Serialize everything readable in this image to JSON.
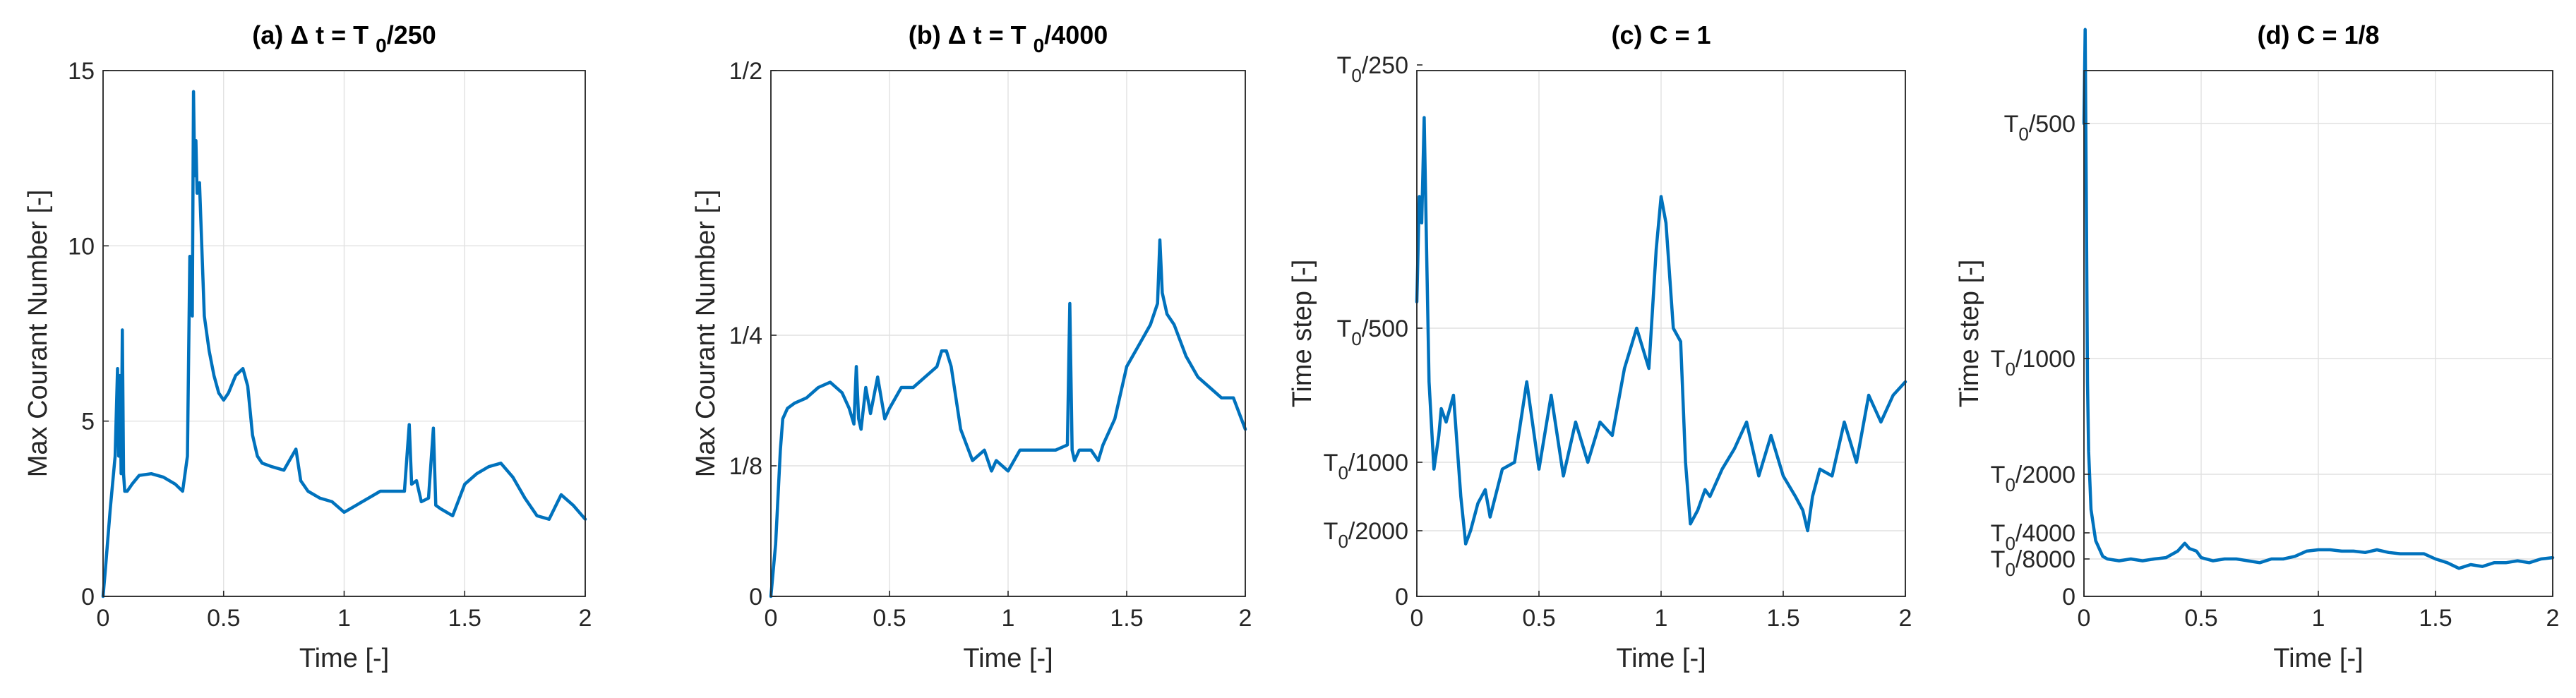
{
  "colors": {
    "series": "#0072bd",
    "axis": "#262626",
    "grid": "#e1e1e1"
  },
  "chart_data": [
    {
      "type": "line",
      "title": "(a)   Δ t = T   0/250",
      "title_parts": [
        "(a)",
        "Δ",
        "t = T",
        "0",
        "/250"
      ],
      "xlabel": "Time [-]",
      "ylabel": "Max Courant Number [-]",
      "xlim": [
        0,
        2
      ],
      "ylim": [
        0,
        15
      ],
      "grid": true,
      "x_ticks": [
        {
          "v": 0,
          "label": "0"
        },
        {
          "v": 0.5,
          "label": "0.5"
        },
        {
          "v": 1,
          "label": "1"
        },
        {
          "v": 1.5,
          "label": "1.5"
        },
        {
          "v": 2,
          "label": "2"
        }
      ],
      "y_ticks": [
        {
          "v": 0,
          "label": "0"
        },
        {
          "v": 5,
          "label": "5"
        },
        {
          "v": 10,
          "label": "10"
        },
        {
          "v": 15,
          "label": "15"
        }
      ],
      "x": [
        0,
        0.01,
        0.03,
        0.05,
        0.06,
        0.065,
        0.07,
        0.075,
        0.08,
        0.085,
        0.09,
        0.1,
        0.12,
        0.15,
        0.2,
        0.25,
        0.3,
        0.33,
        0.35,
        0.36,
        0.37,
        0.375,
        0.38,
        0.385,
        0.39,
        0.4,
        0.42,
        0.44,
        0.46,
        0.48,
        0.5,
        0.52,
        0.55,
        0.58,
        0.6,
        0.62,
        0.64,
        0.66,
        0.7,
        0.75,
        0.8,
        0.82,
        0.85,
        0.9,
        0.95,
        1.0,
        1.05,
        1.1,
        1.15,
        1.2,
        1.25,
        1.27,
        1.28,
        1.3,
        1.32,
        1.35,
        1.37,
        1.38,
        1.4,
        1.45,
        1.5,
        1.55,
        1.6,
        1.65,
        1.7,
        1.75,
        1.8,
        1.85,
        1.9,
        1.95,
        2.0
      ],
      "values": [
        0,
        0.8,
        2.5,
        4.0,
        6.5,
        4.0,
        6.3,
        3.5,
        7.6,
        3.5,
        3.0,
        3.0,
        3.2,
        3.45,
        3.5,
        3.4,
        3.2,
        3.0,
        4.0,
        9.7,
        8.0,
        14.4,
        12.0,
        13.0,
        11.5,
        11.8,
        8.0,
        7.0,
        6.3,
        5.8,
        5.6,
        5.8,
        6.3,
        6.5,
        6.0,
        4.6,
        4.0,
        3.8,
        3.7,
        3.6,
        4.2,
        3.3,
        3.0,
        2.8,
        2.7,
        2.4,
        2.6,
        2.8,
        3.0,
        3.0,
        3.0,
        4.9,
        3.2,
        3.3,
        2.7,
        2.8,
        4.8,
        2.6,
        2.5,
        2.3,
        3.2,
        3.5,
        3.7,
        3.8,
        3.4,
        2.8,
        2.3,
        2.2,
        2.9,
        2.6,
        2.2
      ]
    },
    {
      "type": "line",
      "title": "(b)   Δ t = T   0/4000",
      "title_parts": [
        "(b)",
        "Δ",
        "t = T",
        "0",
        "/4000"
      ],
      "xlabel": "Time [-]",
      "ylabel": "Max Courant Number [-]",
      "xlim": [
        0,
        2
      ],
      "ylim": [
        0,
        0.5
      ],
      "grid": true,
      "x_ticks": [
        {
          "v": 0,
          "label": "0"
        },
        {
          "v": 0.5,
          "label": "0.5"
        },
        {
          "v": 1,
          "label": "1"
        },
        {
          "v": 1.5,
          "label": "1.5"
        },
        {
          "v": 2,
          "label": "2"
        }
      ],
      "y_ticks": [
        {
          "v": 0,
          "label": "0"
        },
        {
          "v": 0.125,
          "label": "1/8"
        },
        {
          "v": 0.25,
          "label": "1/4"
        },
        {
          "v": 0.5,
          "label": "1/2"
        }
      ],
      "x": [
        0,
        0.02,
        0.04,
        0.05,
        0.07,
        0.1,
        0.15,
        0.2,
        0.25,
        0.3,
        0.33,
        0.35,
        0.36,
        0.37,
        0.38,
        0.4,
        0.42,
        0.45,
        0.48,
        0.5,
        0.55,
        0.6,
        0.65,
        0.7,
        0.72,
        0.74,
        0.76,
        0.8,
        0.85,
        0.9,
        0.93,
        0.95,
        1.0,
        1.05,
        1.1,
        1.15,
        1.2,
        1.25,
        1.26,
        1.27,
        1.28,
        1.3,
        1.35,
        1.38,
        1.4,
        1.45,
        1.5,
        1.55,
        1.6,
        1.63,
        1.64,
        1.65,
        1.67,
        1.7,
        1.75,
        1.8,
        1.85,
        1.9,
        1.95,
        2.0
      ],
      "values": [
        0,
        0.05,
        0.14,
        0.17,
        0.18,
        0.185,
        0.19,
        0.2,
        0.205,
        0.195,
        0.18,
        0.165,
        0.22,
        0.17,
        0.16,
        0.2,
        0.175,
        0.21,
        0.17,
        0.18,
        0.2,
        0.2,
        0.21,
        0.22,
        0.235,
        0.235,
        0.22,
        0.16,
        0.13,
        0.14,
        0.12,
        0.13,
        0.12,
        0.14,
        0.14,
        0.14,
        0.14,
        0.145,
        0.28,
        0.14,
        0.13,
        0.14,
        0.14,
        0.13,
        0.145,
        0.17,
        0.22,
        0.24,
        0.26,
        0.28,
        0.34,
        0.29,
        0.27,
        0.26,
        0.23,
        0.21,
        0.2,
        0.19,
        0.19,
        0.16
      ]
    },
    {
      "type": "line",
      "title": "(c) C = 1",
      "xlabel": "Time [-]",
      "ylabel": "Time step [-]",
      "xlim": [
        0,
        2
      ],
      "grid": true,
      "x_ticks": [
        {
          "v": 0,
          "label": "0"
        },
        {
          "v": 0.5,
          "label": "0.5"
        },
        {
          "v": 1,
          "label": "1"
        },
        {
          "v": 1.5,
          "label": "1.5"
        },
        {
          "v": 2,
          "label": "2"
        }
      ],
      "y_ticks": [
        {
          "v": 0,
          "label": "0"
        },
        {
          "v": 1,
          "label": "T0/2000"
        },
        {
          "v": 2,
          "label": "T0/1000"
        },
        {
          "v": 3,
          "label": "T0/500"
        },
        {
          "v": 4,
          "label": "T0/250"
        }
      ],
      "y_axis_note": "y in log2 steps: 1=T0/2000, 2=T0/1000, 3=T0/500, 4=T0/250",
      "x": [
        0,
        0.01,
        0.02,
        0.03,
        0.04,
        0.05,
        0.07,
        0.09,
        0.1,
        0.12,
        0.15,
        0.18,
        0.2,
        0.22,
        0.25,
        0.28,
        0.3,
        0.35,
        0.4,
        0.45,
        0.5,
        0.55,
        0.6,
        0.65,
        0.7,
        0.75,
        0.8,
        0.85,
        0.9,
        0.95,
        0.98,
        1.0,
        1.02,
        1.05,
        1.08,
        1.1,
        1.12,
        1.15,
        1.18,
        1.2,
        1.25,
        1.3,
        1.35,
        1.4,
        1.45,
        1.5,
        1.55,
        1.58,
        1.6,
        1.62,
        1.65,
        1.7,
        1.75,
        1.8,
        1.85,
        1.9,
        1.95,
        2.0
      ],
      "values": [
        3.1,
        3.5,
        3.4,
        3.8,
        3.3,
        2.6,
        1.9,
        2.2,
        2.4,
        2.3,
        2.5,
        1.5,
        0.8,
        1.0,
        1.4,
        1.6,
        1.2,
        1.9,
        2.0,
        2.6,
        1.9,
        2.5,
        1.8,
        2.3,
        2.0,
        2.3,
        2.2,
        2.7,
        3.0,
        2.7,
        3.3,
        3.5,
        3.4,
        3.0,
        2.9,
        2.0,
        1.1,
        1.3,
        1.6,
        1.5,
        1.9,
        2.1,
        2.3,
        1.8,
        2.2,
        1.8,
        1.5,
        1.3,
        1.0,
        1.5,
        1.9,
        1.8,
        2.3,
        2.0,
        2.5,
        2.3,
        2.5,
        2.6
      ]
    },
    {
      "type": "line",
      "title": "(d) C = 1/8",
      "xlabel": "Time [-]",
      "ylabel": "Time step [-]",
      "xlim": [
        0,
        2
      ],
      "grid": true,
      "x_ticks": [
        {
          "v": 0,
          "label": "0"
        },
        {
          "v": 0.5,
          "label": "0.5"
        },
        {
          "v": 1,
          "label": "1"
        },
        {
          "v": 1.5,
          "label": "1.5"
        },
        {
          "v": 2,
          "label": "2"
        }
      ],
      "y_ticks": [
        {
          "v": 0,
          "label": "0"
        },
        {
          "v": 1,
          "label": "T0/8000"
        },
        {
          "v": 2,
          "label": "T0/4000"
        },
        {
          "v": 3,
          "label": "T0/2000"
        },
        {
          "v": 4,
          "label": "T0/1000"
        },
        {
          "v": 5,
          "label": "T0/500"
        }
      ],
      "y_axis_note": "y in log2 steps: 1=T0/8000, 2=T0/4000, 3=T0/2000, 4=T0/1000, 5=T0/500",
      "x": [
        0,
        0.005,
        0.01,
        0.015,
        0.02,
        0.03,
        0.05,
        0.08,
        0.1,
        0.15,
        0.2,
        0.25,
        0.3,
        0.35,
        0.4,
        0.43,
        0.45,
        0.48,
        0.5,
        0.55,
        0.6,
        0.65,
        0.7,
        0.75,
        0.8,
        0.85,
        0.9,
        0.95,
        1.0,
        1.05,
        1.1,
        1.15,
        1.2,
        1.25,
        1.3,
        1.35,
        1.4,
        1.45,
        1.5,
        1.55,
        1.6,
        1.65,
        1.7,
        1.75,
        1.8,
        1.85,
        1.9,
        1.95,
        2.0
      ],
      "values": [
        5.0,
        5.4,
        4.7,
        3.8,
        3.2,
        2.4,
        1.7,
        1.1,
        1.0,
        0.95,
        1.0,
        0.95,
        1.0,
        1.05,
        1.3,
        1.6,
        1.4,
        1.3,
        1.05,
        0.95,
        1.0,
        1.0,
        0.95,
        0.9,
        1.0,
        1.0,
        1.1,
        1.3,
        1.35,
        1.35,
        1.3,
        1.3,
        1.25,
        1.35,
        1.25,
        1.2,
        1.2,
        1.2,
        1.0,
        0.9,
        0.75,
        0.85,
        0.8,
        0.9,
        0.9,
        0.95,
        0.9,
        1.0,
        1.05
      ]
    }
  ]
}
